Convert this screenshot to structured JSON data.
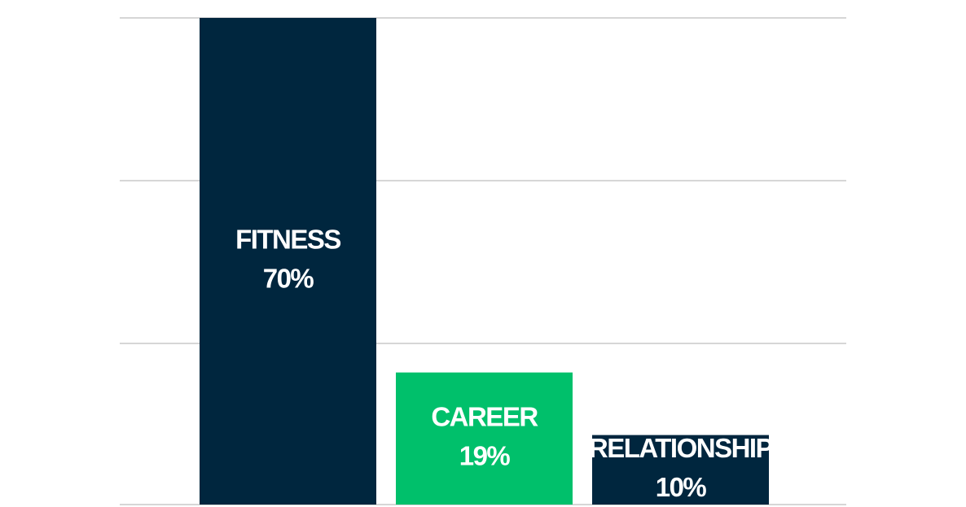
{
  "chart_data": {
    "type": "bar",
    "categories": [
      "FITNESS",
      "CAREER",
      "RELATIONSHIP"
    ],
    "values": [
      70,
      19,
      10
    ],
    "value_labels": [
      "70%",
      "19%",
      "10%"
    ],
    "colors": [
      "#00263e",
      "#00c06b",
      "#00263e"
    ],
    "ylim": [
      0,
      70
    ]
  }
}
